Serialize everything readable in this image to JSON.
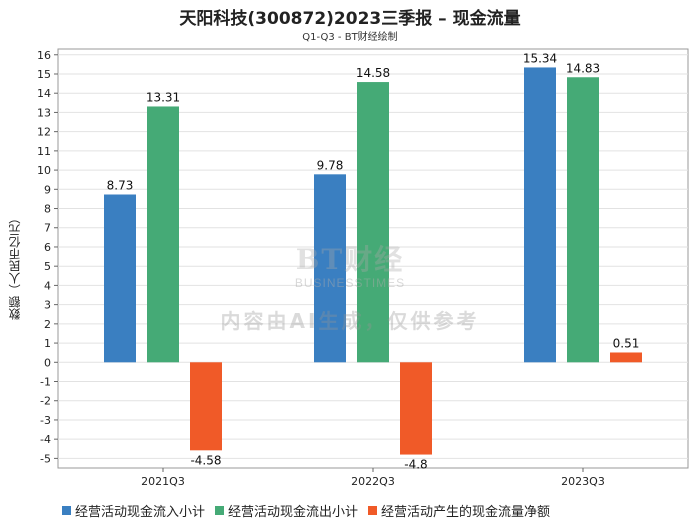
{
  "chart_data": {
    "type": "bar",
    "title": "天阳科技(300872)2023三季报 – 现金流量",
    "subtitle": "Q1-Q3 - BT财经绘制",
    "ylabel": "数额（人民币亿元）",
    "xlabel": "",
    "categories": [
      "2021Q3",
      "2022Q3",
      "2023Q3"
    ],
    "series": [
      {
        "name": "经营活动现金流入小计",
        "color": "#3a7fc1",
        "values": [
          8.73,
          9.78,
          15.34
        ]
      },
      {
        "name": "经营活动现金流出小计",
        "color": "#45aa76",
        "values": [
          13.31,
          14.58,
          14.83
        ]
      },
      {
        "name": "经营活动产生的现金流量净额",
        "color": "#f05a28",
        "values": [
          -4.58,
          -4.8,
          0.51
        ]
      }
    ],
    "ylim": [
      -5.5,
      16.3
    ],
    "yticks": [
      -5,
      -4,
      -3,
      -2,
      -1,
      0,
      1,
      2,
      3,
      4,
      5,
      6,
      7,
      8,
      9,
      10,
      11,
      12,
      13,
      14,
      15,
      16
    ],
    "grid": true,
    "legend_position": "bottom"
  },
  "watermark": {
    "logo": "BT财经",
    "sub": "BUSINESSTIMES",
    "text": "内容由AI生成，仅供参考"
  }
}
